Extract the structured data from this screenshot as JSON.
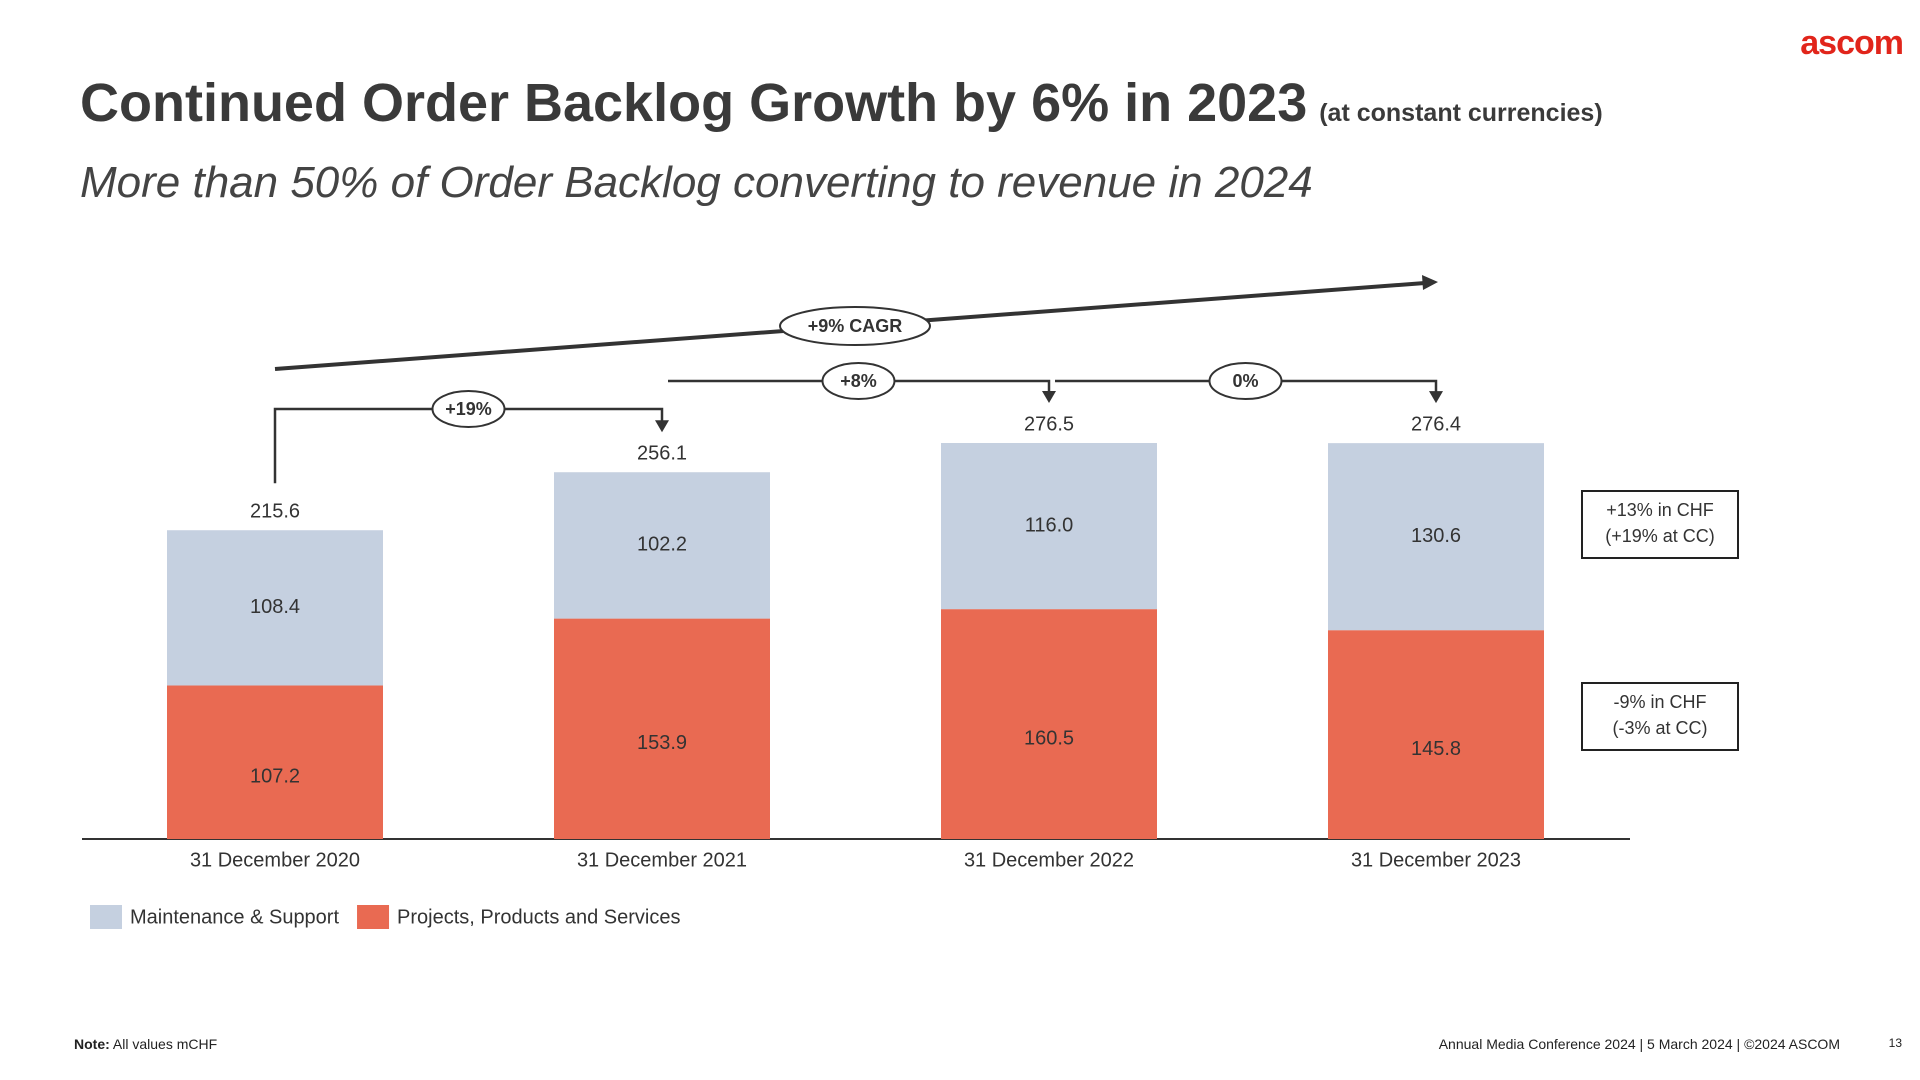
{
  "logo": "ascom",
  "chart_data": {
    "type": "stacked_bar",
    "title": "Continued Order Backlog Growth by 6% in 2023",
    "title_note": "(at constant currencies)",
    "subtitle": "More than 50% of Order Backlog converting to revenue in 2024",
    "categories": [
      "31 December 2020",
      "31 December 2021",
      "31 December 2022",
      "31 December 2023"
    ],
    "series": [
      {
        "name": "Projects, Products and Services",
        "color": "#e96a52",
        "values": [
          107.2,
          153.9,
          160.5,
          145.8
        ]
      },
      {
        "name": "Maintenance & Support",
        "color": "#c5d0e0",
        "values": [
          108.4,
          102.2,
          116.0,
          130.6
        ],
        "value_labels": [
          "108.4",
          "102.2",
          "116.0",
          "130.6"
        ]
      }
    ],
    "totals": [
      215.6,
      256.1,
      276.5,
      276.4
    ],
    "growth_labels": [
      "+19%",
      "+8%",
      "0%"
    ],
    "cagr_label": "+9% CAGR",
    "maintenance_note": [
      "+13% in CHF",
      "(+19% at CC)"
    ],
    "projects_note": [
      "-9% in CHF",
      "(-3% at CC)"
    ]
  },
  "footer": {
    "note_label": "Note:",
    "note": "All values mCHF",
    "source": "Annual Media Conference 2024 | 5 March 2024 | ©2024 ASCOM",
    "page": "13"
  }
}
